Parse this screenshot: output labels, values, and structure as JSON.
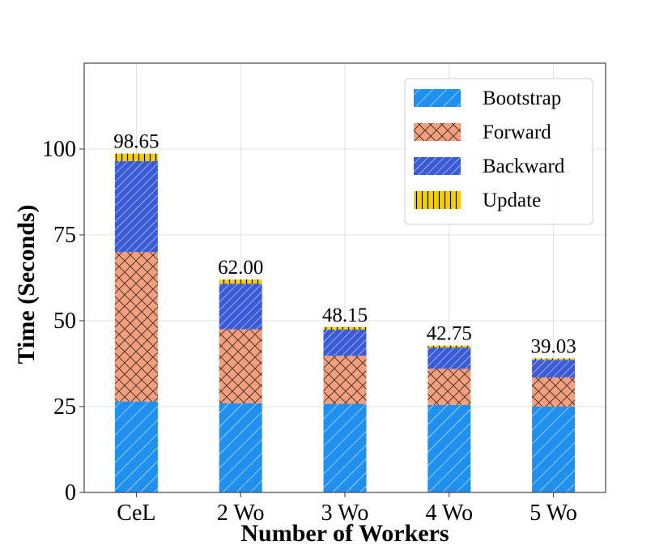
{
  "chart_data": {
    "type": "bar",
    "stacked": true,
    "categories": [
      "CeL",
      "2 Wo",
      "3 Wo",
      "4 Wo",
      "5 Wo"
    ],
    "series": [
      {
        "name": "Bootstrap",
        "values": [
          26.5,
          26.0,
          25.8,
          25.5,
          25.0
        ],
        "color": "#1f8ff0",
        "pattern": "diagonal-light"
      },
      {
        "name": "Forward",
        "values": [
          43.5,
          21.5,
          14.0,
          10.5,
          8.5
        ],
        "color": "#f4a07e",
        "pattern": "crosshatch"
      },
      {
        "name": "Backward",
        "values": [
          26.5,
          13.3,
          7.6,
          6.2,
          5.1
        ],
        "color": "#3a5bd9",
        "pattern": "diagonal-dense"
      },
      {
        "name": "Update",
        "values": [
          2.15,
          1.2,
          0.75,
          0.55,
          0.43
        ],
        "color": "#f5d000",
        "pattern": "vertical"
      }
    ],
    "totals": [
      98.65,
      62.0,
      48.15,
      42.75,
      39.03
    ],
    "total_labels": [
      "98.65",
      "62.00",
      "48.15",
      "42.75",
      "39.03"
    ],
    "title": "",
    "xlabel": "Number of Workers",
    "ylabel": "Time (Seconds)",
    "ylim": [
      0,
      125
    ],
    "yticks": [
      0,
      25,
      50,
      75,
      100
    ],
    "grid": true,
    "legend_position": "top-right"
  }
}
